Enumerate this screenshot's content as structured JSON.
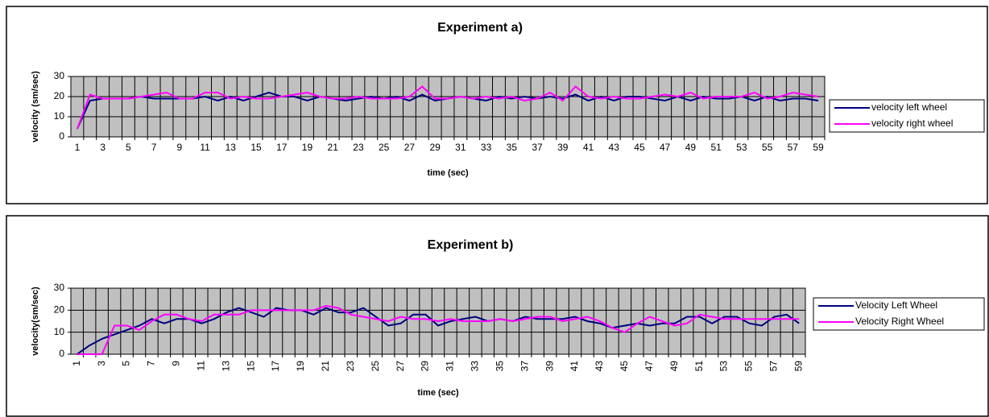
{
  "chart_data": [
    {
      "type": "line",
      "title": "Experiment a)",
      "x_label": "time (sec)",
      "y_label": "velocity (sm/sec)",
      "categories": [
        1,
        null,
        3,
        null,
        5,
        null,
        7,
        null,
        9,
        null,
        11,
        null,
        13,
        null,
        15,
        null,
        17,
        null,
        19,
        null,
        21,
        null,
        23,
        null,
        25,
        null,
        27,
        null,
        29,
        null,
        31,
        null,
        33,
        null,
        35,
        null,
        37,
        null,
        39,
        null,
        41,
        null,
        43,
        null,
        45,
        null,
        47,
        null,
        49,
        null,
        51,
        null,
        53,
        null,
        55,
        null,
        57,
        null,
        59
      ],
      "series": [
        {
          "name": "velocity left wheel",
          "color": "#000080",
          "values": [
            4,
            18,
            19,
            19,
            19,
            20,
            19,
            19,
            19,
            19,
            20,
            18,
            20,
            18,
            20,
            22,
            20,
            20,
            18,
            20,
            19,
            18,
            19,
            20,
            19,
            20,
            18,
            21,
            18,
            19,
            20,
            19,
            18,
            20,
            19,
            20,
            19,
            20,
            19,
            21,
            18,
            20,
            18,
            20,
            20,
            19,
            18,
            20,
            18,
            20,
            19,
            19,
            20,
            18,
            20,
            18,
            19,
            19,
            18
          ]
        },
        {
          "name": "velocity right wheel",
          "color": "#ff00ff",
          "values": [
            4,
            21,
            19,
            19,
            19,
            20,
            21,
            22,
            19,
            19,
            22,
            22,
            19,
            20,
            19,
            19,
            20,
            21,
            22,
            20,
            19,
            19,
            20,
            19,
            19,
            19,
            20,
            25,
            19,
            19,
            20,
            19,
            20,
            19,
            20,
            18,
            19,
            22,
            18,
            25,
            20,
            19,
            20,
            19,
            19,
            20,
            21,
            20,
            22,
            19,
            20,
            20,
            20,
            22,
            19,
            20,
            22,
            21,
            20
          ]
        }
      ],
      "ylim": [
        0,
        30
      ],
      "yticks": [
        0,
        10,
        20,
        30
      ],
      "grid": true,
      "legend": "right"
    },
    {
      "type": "line",
      "title": "Experiment b)",
      "x_label": "time (sec)",
      "y_label": "velocity(sm/sec)",
      "categories": [
        1,
        null,
        3,
        null,
        5,
        null,
        7,
        null,
        9,
        null,
        11,
        null,
        13,
        null,
        15,
        null,
        17,
        null,
        19,
        null,
        21,
        null,
        23,
        null,
        25,
        null,
        27,
        null,
        29,
        null,
        31,
        null,
        33,
        null,
        35,
        null,
        37,
        null,
        39,
        null,
        41,
        null,
        43,
        null,
        45,
        null,
        47,
        null,
        49,
        null,
        51,
        null,
        53,
        null,
        55,
        null,
        57,
        null,
        59
      ],
      "series": [
        {
          "name": "Velocity Left Wheel",
          "color": "#000080",
          "values": [
            0,
            4,
            7,
            9,
            11,
            13,
            16,
            14,
            16,
            16,
            14,
            16,
            19,
            21,
            19,
            17,
            21,
            20,
            20,
            18,
            21,
            19,
            19,
            21,
            17,
            13,
            14,
            18,
            18,
            13,
            15,
            16,
            17,
            15,
            16,
            15,
            17,
            16,
            16,
            16,
            17,
            15,
            14,
            12,
            13,
            14,
            13,
            14,
            14,
            17,
            17,
            14,
            17,
            17,
            14,
            13,
            17,
            18,
            14
          ]
        },
        {
          "name": "Velocity Right Wheel",
          "color": "#ff00ff",
          "values": [
            0,
            0,
            0,
            13,
            13,
            11,
            15,
            18,
            18,
            16,
            15,
            18,
            18,
            18,
            20,
            20,
            20,
            20,
            20,
            20,
            22,
            21,
            18,
            17,
            16,
            15,
            17,
            16,
            16,
            15,
            16,
            15,
            15,
            15,
            16,
            15,
            16,
            17,
            17,
            15,
            16,
            17,
            15,
            12,
            10,
            14,
            17,
            15,
            13,
            14,
            18,
            17,
            16,
            16,
            16,
            16,
            16,
            16,
            16
          ]
        }
      ],
      "ylim": [
        0,
        30
      ],
      "yticks": [
        0,
        10,
        20,
        30
      ],
      "grid": true,
      "legend": "right"
    }
  ]
}
